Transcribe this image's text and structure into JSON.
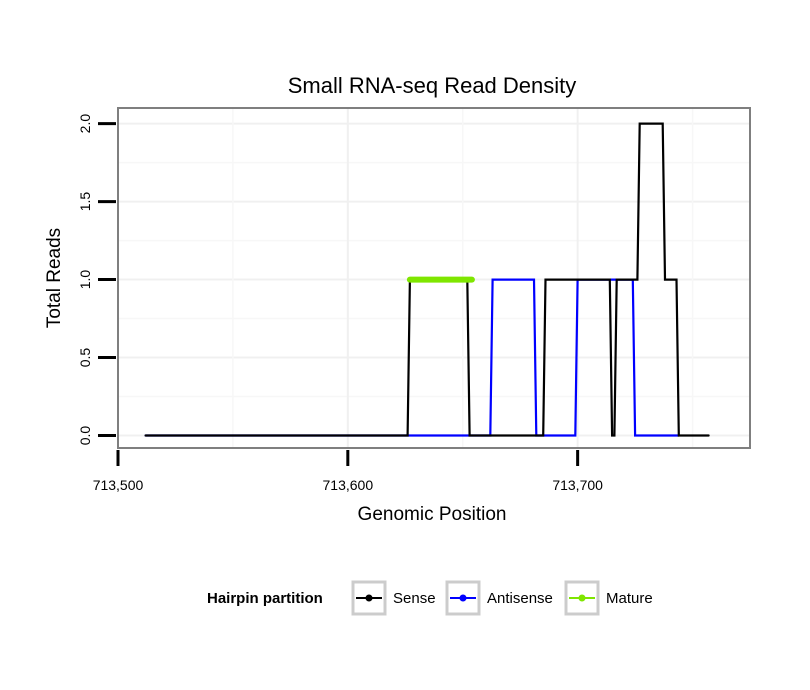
{
  "chart_data": {
    "type": "line",
    "title": "Small RNA-seq Read Density",
    "xlabel": "Genomic Position",
    "ylabel": "Total Reads",
    "xlim": [
      713500,
      713775
    ],
    "ylim": [
      -0.08,
      2.1
    ],
    "x_ticks": [
      {
        "value": 713500,
        "label": "713,500"
      },
      {
        "value": 713600,
        "label": "713,600"
      },
      {
        "value": 713700,
        "label": "713,700"
      }
    ],
    "y_ticks": [
      {
        "value": 0.0,
        "label": "0.0"
      },
      {
        "value": 0.5,
        "label": "0.5"
      },
      {
        "value": 1.0,
        "label": "1.0"
      },
      {
        "value": 1.5,
        "label": "1.5"
      },
      {
        "value": 2.0,
        "label": "2.0"
      }
    ],
    "grid": true,
    "legend": {
      "title": "Hairpin partition",
      "position": "bottom"
    },
    "series": [
      {
        "name": "Sense",
        "color": "#000000",
        "x": [
          713512,
          713626,
          713627,
          713652,
          713653,
          713685,
          713686,
          713702,
          713703,
          713714,
          713715,
          713716,
          713717,
          713726,
          713727,
          713737,
          713738,
          713743,
          713744,
          713757
        ],
        "y": [
          0,
          0,
          1,
          1,
          0,
          0,
          1,
          1,
          1,
          1,
          0,
          0,
          1,
          1,
          2,
          2,
          1,
          1,
          0,
          0
        ]
      },
      {
        "name": "Antisense",
        "color": "#0000ff",
        "x": [
          713512,
          713662,
          713663,
          713681,
          713682,
          713699,
          713700,
          713724,
          713725,
          713744
        ],
        "y": [
          0,
          0,
          1,
          1,
          0,
          0,
          1,
          1,
          0,
          0
        ]
      },
      {
        "name": "Mature",
        "color": "#7fe600",
        "x": [
          713627,
          713654
        ],
        "y": [
          1,
          1
        ]
      }
    ]
  }
}
